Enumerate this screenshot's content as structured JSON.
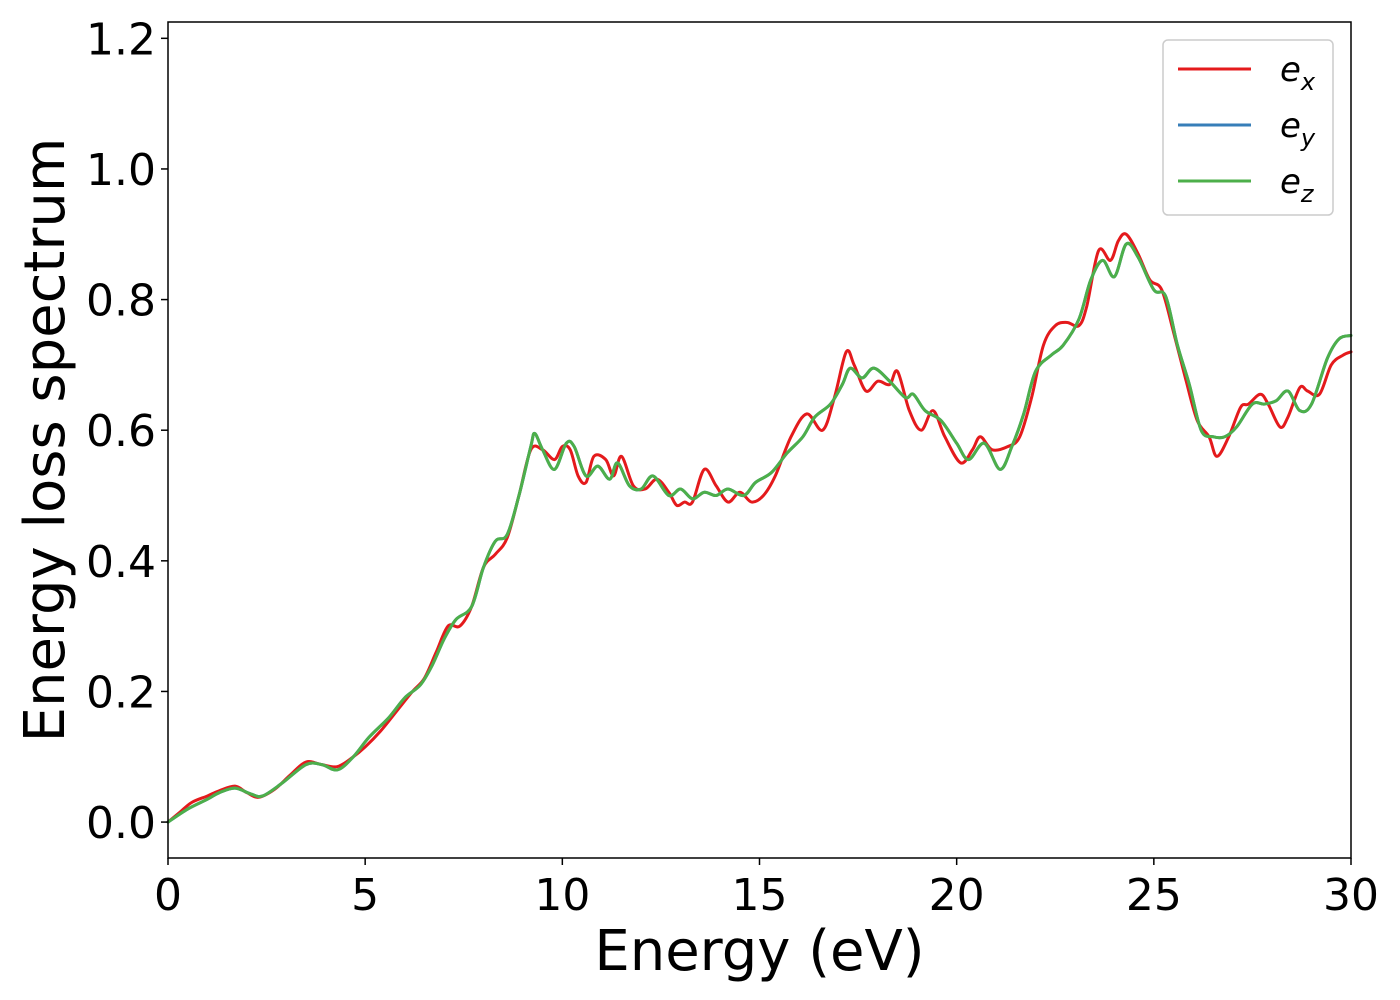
{
  "chart_data": {
    "type": "line",
    "xlabel": "Energy (eV)",
    "ylabel": "Energy loss spectrum",
    "xlim": [
      0,
      30
    ],
    "ylim": [
      -0.055,
      1.225
    ],
    "xticks": [
      "0",
      "5",
      "10",
      "15",
      "20",
      "25",
      "30"
    ],
    "yticks": [
      "0.0",
      "0.2",
      "0.4",
      "0.6",
      "0.8",
      "1.0",
      "1.2"
    ],
    "grid": false,
    "legend_position": "top-right",
    "series": [
      {
        "name": "e_x",
        "legend_base": "e",
        "legend_sub": "x",
        "color": "#e41a1c",
        "points": [
          [
            0.0,
            0.0
          ],
          [
            0.3,
            0.015
          ],
          [
            0.6,
            0.03
          ],
          [
            1.0,
            0.04
          ],
          [
            1.3,
            0.048
          ],
          [
            1.7,
            0.055
          ],
          [
            2.0,
            0.045
          ],
          [
            2.3,
            0.038
          ],
          [
            2.7,
            0.05
          ],
          [
            3.1,
            0.072
          ],
          [
            3.5,
            0.092
          ],
          [
            3.9,
            0.088
          ],
          [
            4.3,
            0.085
          ],
          [
            4.7,
            0.1
          ],
          [
            5.0,
            0.115
          ],
          [
            5.4,
            0.14
          ],
          [
            5.8,
            0.17
          ],
          [
            6.2,
            0.2
          ],
          [
            6.5,
            0.22
          ],
          [
            6.8,
            0.26
          ],
          [
            7.1,
            0.3
          ],
          [
            7.4,
            0.3
          ],
          [
            7.7,
            0.33
          ],
          [
            8.0,
            0.39
          ],
          [
            8.3,
            0.41
          ],
          [
            8.6,
            0.435
          ],
          [
            8.9,
            0.5
          ],
          [
            9.2,
            0.57
          ],
          [
            9.5,
            0.57
          ],
          [
            9.8,
            0.555
          ],
          [
            10.0,
            0.575
          ],
          [
            10.2,
            0.57
          ],
          [
            10.4,
            0.53
          ],
          [
            10.6,
            0.52
          ],
          [
            10.8,
            0.56
          ],
          [
            11.1,
            0.555
          ],
          [
            11.3,
            0.53
          ],
          [
            11.5,
            0.56
          ],
          [
            11.8,
            0.515
          ],
          [
            12.1,
            0.51
          ],
          [
            12.4,
            0.525
          ],
          [
            12.7,
            0.505
          ],
          [
            12.9,
            0.485
          ],
          [
            13.1,
            0.49
          ],
          [
            13.3,
            0.49
          ],
          [
            13.6,
            0.54
          ],
          [
            13.9,
            0.515
          ],
          [
            14.2,
            0.49
          ],
          [
            14.5,
            0.505
          ],
          [
            14.8,
            0.49
          ],
          [
            15.1,
            0.5
          ],
          [
            15.4,
            0.53
          ],
          [
            15.8,
            0.59
          ],
          [
            16.2,
            0.625
          ],
          [
            16.6,
            0.6
          ],
          [
            16.9,
            0.65
          ],
          [
            17.2,
            0.72
          ],
          [
            17.4,
            0.7
          ],
          [
            17.7,
            0.66
          ],
          [
            18.0,
            0.675
          ],
          [
            18.3,
            0.67
          ],
          [
            18.5,
            0.69
          ],
          [
            18.8,
            0.63
          ],
          [
            19.1,
            0.6
          ],
          [
            19.4,
            0.63
          ],
          [
            19.7,
            0.59
          ],
          [
            20.1,
            0.55
          ],
          [
            20.4,
            0.57
          ],
          [
            20.6,
            0.59
          ],
          [
            20.9,
            0.57
          ],
          [
            21.3,
            0.575
          ],
          [
            21.6,
            0.59
          ],
          [
            21.9,
            0.65
          ],
          [
            22.2,
            0.73
          ],
          [
            22.5,
            0.76
          ],
          [
            22.8,
            0.765
          ],
          [
            23.1,
            0.76
          ],
          [
            23.3,
            0.79
          ],
          [
            23.6,
            0.875
          ],
          [
            23.9,
            0.86
          ],
          [
            24.1,
            0.89
          ],
          [
            24.3,
            0.9
          ],
          [
            24.6,
            0.87
          ],
          [
            24.9,
            0.83
          ],
          [
            25.2,
            0.815
          ],
          [
            25.5,
            0.75
          ],
          [
            25.8,
            0.68
          ],
          [
            26.1,
            0.615
          ],
          [
            26.4,
            0.59
          ],
          [
            26.6,
            0.56
          ],
          [
            26.9,
            0.59
          ],
          [
            27.2,
            0.635
          ],
          [
            27.4,
            0.64
          ],
          [
            27.7,
            0.655
          ],
          [
            27.9,
            0.64
          ],
          [
            28.2,
            0.605
          ],
          [
            28.4,
            0.62
          ],
          [
            28.7,
            0.665
          ],
          [
            28.9,
            0.66
          ],
          [
            29.2,
            0.655
          ],
          [
            29.5,
            0.7
          ],
          [
            29.8,
            0.715
          ],
          [
            30.0,
            0.72
          ]
        ]
      },
      {
        "name": "e_y",
        "legend_base": "e",
        "legend_sub": "y",
        "color": "#377eb8",
        "points": [
          [
            0.0,
            0.0
          ],
          [
            0.5,
            0.02
          ],
          [
            1.0,
            0.035
          ],
          [
            1.3,
            0.045
          ],
          [
            1.7,
            0.052
          ],
          [
            2.1,
            0.043
          ],
          [
            2.4,
            0.04
          ],
          [
            2.9,
            0.06
          ],
          [
            3.5,
            0.088
          ],
          [
            3.9,
            0.088
          ],
          [
            4.3,
            0.08
          ],
          [
            4.7,
            0.1
          ],
          [
            5.1,
            0.13
          ],
          [
            5.6,
            0.16
          ],
          [
            6.0,
            0.19
          ],
          [
            6.4,
            0.21
          ],
          [
            6.7,
            0.24
          ],
          [
            7.0,
            0.28
          ],
          [
            7.3,
            0.31
          ],
          [
            7.7,
            0.33
          ],
          [
            8.0,
            0.39
          ],
          [
            8.3,
            0.43
          ],
          [
            8.6,
            0.44
          ],
          [
            8.9,
            0.5
          ],
          [
            9.2,
            0.575
          ],
          [
            9.3,
            0.595
          ],
          [
            9.5,
            0.57
          ],
          [
            9.8,
            0.54
          ],
          [
            10.1,
            0.58
          ],
          [
            10.3,
            0.575
          ],
          [
            10.6,
            0.53
          ],
          [
            10.9,
            0.545
          ],
          [
            11.2,
            0.525
          ],
          [
            11.4,
            0.55
          ],
          [
            11.7,
            0.515
          ],
          [
            12.0,
            0.51
          ],
          [
            12.3,
            0.53
          ],
          [
            12.7,
            0.5
          ],
          [
            13.0,
            0.51
          ],
          [
            13.3,
            0.495
          ],
          [
            13.6,
            0.505
          ],
          [
            13.9,
            0.5
          ],
          [
            14.2,
            0.51
          ],
          [
            14.6,
            0.5
          ],
          [
            14.9,
            0.52
          ],
          [
            15.3,
            0.535
          ],
          [
            15.7,
            0.565
          ],
          [
            16.1,
            0.59
          ],
          [
            16.4,
            0.62
          ],
          [
            16.8,
            0.64
          ],
          [
            17.1,
            0.67
          ],
          [
            17.3,
            0.695
          ],
          [
            17.6,
            0.68
          ],
          [
            17.9,
            0.695
          ],
          [
            18.3,
            0.675
          ],
          [
            18.7,
            0.65
          ],
          [
            18.9,
            0.655
          ],
          [
            19.2,
            0.63
          ],
          [
            19.6,
            0.615
          ],
          [
            20.0,
            0.58
          ],
          [
            20.3,
            0.555
          ],
          [
            20.7,
            0.58
          ],
          [
            21.1,
            0.54
          ],
          [
            21.4,
            0.575
          ],
          [
            21.7,
            0.625
          ],
          [
            22.0,
            0.69
          ],
          [
            22.4,
            0.715
          ],
          [
            22.7,
            0.73
          ],
          [
            23.1,
            0.77
          ],
          [
            23.4,
            0.83
          ],
          [
            23.7,
            0.86
          ],
          [
            24.0,
            0.835
          ],
          [
            24.3,
            0.885
          ],
          [
            24.6,
            0.865
          ],
          [
            25.0,
            0.815
          ],
          [
            25.3,
            0.805
          ],
          [
            25.6,
            0.73
          ],
          [
            25.9,
            0.67
          ],
          [
            26.2,
            0.6
          ],
          [
            26.5,
            0.59
          ],
          [
            26.8,
            0.59
          ],
          [
            27.1,
            0.605
          ],
          [
            27.5,
            0.64
          ],
          [
            27.8,
            0.64
          ],
          [
            28.1,
            0.645
          ],
          [
            28.4,
            0.66
          ],
          [
            28.7,
            0.63
          ],
          [
            29.0,
            0.64
          ],
          [
            29.4,
            0.71
          ],
          [
            29.7,
            0.74
          ],
          [
            30.0,
            0.745
          ]
        ]
      },
      {
        "name": "e_z",
        "legend_base": "e",
        "legend_sub": "z",
        "color": "#4daf4a",
        "points": [
          [
            0.0,
            0.0
          ],
          [
            0.5,
            0.02
          ],
          [
            1.0,
            0.035
          ],
          [
            1.3,
            0.045
          ],
          [
            1.7,
            0.052
          ],
          [
            2.1,
            0.043
          ],
          [
            2.4,
            0.04
          ],
          [
            2.9,
            0.06
          ],
          [
            3.5,
            0.088
          ],
          [
            3.9,
            0.088
          ],
          [
            4.3,
            0.08
          ],
          [
            4.7,
            0.1
          ],
          [
            5.1,
            0.13
          ],
          [
            5.6,
            0.16
          ],
          [
            6.0,
            0.19
          ],
          [
            6.4,
            0.21
          ],
          [
            6.7,
            0.24
          ],
          [
            7.0,
            0.28
          ],
          [
            7.3,
            0.31
          ],
          [
            7.7,
            0.33
          ],
          [
            8.0,
            0.39
          ],
          [
            8.3,
            0.43
          ],
          [
            8.6,
            0.44
          ],
          [
            8.9,
            0.5
          ],
          [
            9.2,
            0.575
          ],
          [
            9.3,
            0.595
          ],
          [
            9.5,
            0.57
          ],
          [
            9.8,
            0.54
          ],
          [
            10.1,
            0.58
          ],
          [
            10.3,
            0.575
          ],
          [
            10.6,
            0.53
          ],
          [
            10.9,
            0.545
          ],
          [
            11.2,
            0.525
          ],
          [
            11.4,
            0.55
          ],
          [
            11.7,
            0.515
          ],
          [
            12.0,
            0.51
          ],
          [
            12.3,
            0.53
          ],
          [
            12.7,
            0.5
          ],
          [
            13.0,
            0.51
          ],
          [
            13.3,
            0.495
          ],
          [
            13.6,
            0.505
          ],
          [
            13.9,
            0.5
          ],
          [
            14.2,
            0.51
          ],
          [
            14.6,
            0.5
          ],
          [
            14.9,
            0.52
          ],
          [
            15.3,
            0.535
          ],
          [
            15.7,
            0.565
          ],
          [
            16.1,
            0.59
          ],
          [
            16.4,
            0.62
          ],
          [
            16.8,
            0.64
          ],
          [
            17.1,
            0.67
          ],
          [
            17.3,
            0.695
          ],
          [
            17.6,
            0.68
          ],
          [
            17.9,
            0.695
          ],
          [
            18.3,
            0.675
          ],
          [
            18.7,
            0.65
          ],
          [
            18.9,
            0.655
          ],
          [
            19.2,
            0.63
          ],
          [
            19.6,
            0.615
          ],
          [
            20.0,
            0.58
          ],
          [
            20.3,
            0.555
          ],
          [
            20.7,
            0.58
          ],
          [
            21.1,
            0.54
          ],
          [
            21.4,
            0.575
          ],
          [
            21.7,
            0.625
          ],
          [
            22.0,
            0.69
          ],
          [
            22.4,
            0.715
          ],
          [
            22.7,
            0.73
          ],
          [
            23.1,
            0.77
          ],
          [
            23.4,
            0.83
          ],
          [
            23.7,
            0.86
          ],
          [
            24.0,
            0.835
          ],
          [
            24.3,
            0.885
          ],
          [
            24.6,
            0.865
          ],
          [
            25.0,
            0.815
          ],
          [
            25.3,
            0.805
          ],
          [
            25.6,
            0.73
          ],
          [
            25.9,
            0.67
          ],
          [
            26.2,
            0.6
          ],
          [
            26.5,
            0.59
          ],
          [
            26.8,
            0.59
          ],
          [
            27.1,
            0.605
          ],
          [
            27.5,
            0.64
          ],
          [
            27.8,
            0.64
          ],
          [
            28.1,
            0.645
          ],
          [
            28.4,
            0.66
          ],
          [
            28.7,
            0.63
          ],
          [
            29.0,
            0.64
          ],
          [
            29.4,
            0.71
          ],
          [
            29.7,
            0.74
          ],
          [
            30.0,
            0.745
          ]
        ]
      }
    ]
  }
}
